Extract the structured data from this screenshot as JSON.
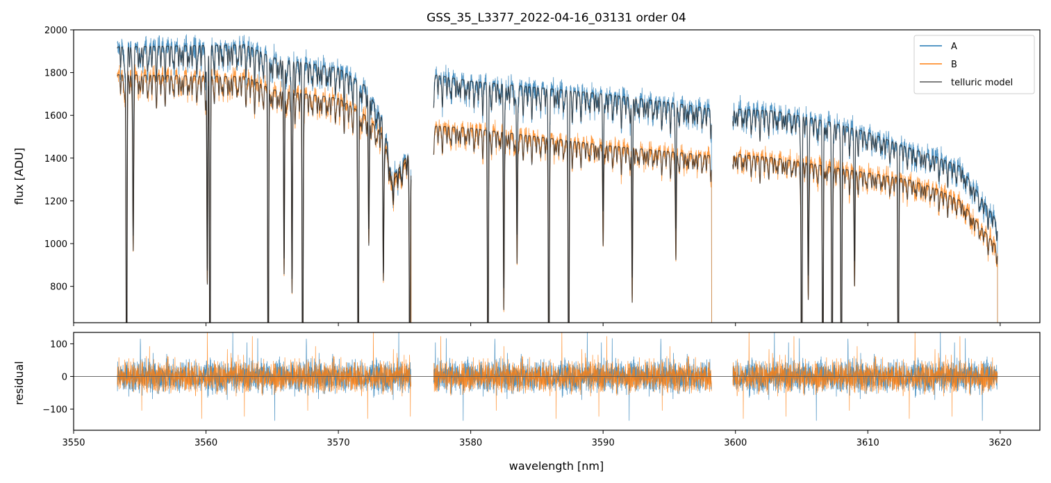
{
  "chart_data": [
    {
      "type": "line",
      "panel": "main",
      "title": "GSS_35_L3377_2022-04-16_03131  order 04",
      "xlabel": "",
      "ylabel": "flux [ADU]",
      "xlim": [
        3550,
        3623
      ],
      "ylim": [
        630,
        2000
      ],
      "xticks": [
        3550,
        3560,
        3570,
        3580,
        3590,
        3600,
        3610,
        3620
      ],
      "yticks": [
        800,
        1000,
        1200,
        1400,
        1600,
        1800,
        2000
      ],
      "ytick_labels": [
        "800",
        "1000",
        "1200",
        "1400",
        "1600",
        "1800",
        "2000"
      ],
      "legend_location": "top-right",
      "segments": [
        [
          3553.3,
          3575.5
        ],
        [
          3577.2,
          3598.2
        ],
        [
          3599.8,
          3619.8
        ]
      ],
      "absorption_lines": [
        {
          "x": 3554.0,
          "depth": 0.98
        },
        {
          "x": 3554.5,
          "depth": 0.45
        },
        {
          "x": 3560.1,
          "depth": 0.55
        },
        {
          "x": 3560.3,
          "depth": 0.95
        },
        {
          "x": 3564.7,
          "depth": 0.96
        },
        {
          "x": 3565.9,
          "depth": 0.5
        },
        {
          "x": 3566.5,
          "depth": 0.55
        },
        {
          "x": 3567.3,
          "depth": 0.97
        },
        {
          "x": 3571.5,
          "depth": 0.96
        },
        {
          "x": 3572.3,
          "depth": 0.35
        },
        {
          "x": 3573.4,
          "depth": 0.45
        },
        {
          "x": 3575.4,
          "depth": 0.96
        },
        {
          "x": 3581.3,
          "depth": 0.97
        },
        {
          "x": 3582.5,
          "depth": 0.55
        },
        {
          "x": 3583.5,
          "depth": 0.4
        },
        {
          "x": 3585.9,
          "depth": 0.97
        },
        {
          "x": 3587.4,
          "depth": 0.96
        },
        {
          "x": 3590.0,
          "depth": 0.3
        },
        {
          "x": 3592.2,
          "depth": 0.5
        },
        {
          "x": 3595.5,
          "depth": 0.35
        },
        {
          "x": 3605.0,
          "depth": 0.97
        },
        {
          "x": 3605.5,
          "depth": 0.45
        },
        {
          "x": 3606.6,
          "depth": 0.96
        },
        {
          "x": 3607.3,
          "depth": 0.96
        },
        {
          "x": 3608.0,
          "depth": 0.96
        },
        {
          "x": 3609.0,
          "depth": 0.4
        },
        {
          "x": 3612.3,
          "depth": 0.85
        }
      ],
      "series": [
        {
          "name": "A",
          "color": "#1f77b4",
          "continuum": [
            [
              3553.3,
              1920
            ],
            [
              3563,
              1930
            ],
            [
              3565,
              1870
            ],
            [
              3570,
              1820
            ],
            [
              3572,
              1740
            ],
            [
              3573.5,
              1560
            ],
            [
              3574,
              1300
            ],
            [
              3575.5,
              1440
            ],
            [
              3577.2,
              1790
            ],
            [
              3580,
              1760
            ],
            [
              3585,
              1730
            ],
            [
              3590,
              1700
            ],
            [
              3595,
              1660
            ],
            [
              3598.2,
              1630
            ],
            [
              3599.8,
              1630
            ],
            [
              3603,
              1620
            ],
            [
              3607,
              1570
            ],
            [
              3610,
              1520
            ],
            [
              3613,
              1450
            ],
            [
              3615,
              1410
            ],
            [
              3617,
              1360
            ],
            [
              3619.8,
              1100
            ]
          ]
        },
        {
          "name": "B",
          "color": "#ff7f0e",
          "continuum": [
            [
              3553.3,
              1790
            ],
            [
              3563,
              1780
            ],
            [
              3565,
              1720
            ],
            [
              3570,
              1680
            ],
            [
              3572,
              1600
            ],
            [
              3573.5,
              1500
            ],
            [
              3574,
              1280
            ],
            [
              3575.5,
              1420
            ],
            [
              3577.2,
              1550
            ],
            [
              3580,
              1540
            ],
            [
              3585,
              1500
            ],
            [
              3590,
              1460
            ],
            [
              3595,
              1430
            ],
            [
              3598.2,
              1410
            ],
            [
              3599.8,
              1420
            ],
            [
              3603,
              1400
            ],
            [
              3607,
              1360
            ],
            [
              3610,
              1330
            ],
            [
              3613,
              1300
            ],
            [
              3615,
              1260
            ],
            [
              3617,
              1200
            ],
            [
              3619.8,
              980
            ]
          ]
        },
        {
          "name": "telluric model",
          "color": "#555555"
        }
      ]
    },
    {
      "type": "line",
      "panel": "residual",
      "title": "",
      "xlabel": "wavelength [nm]",
      "ylabel": "residual",
      "xlim": [
        3550,
        3623
      ],
      "ylim": [
        -165,
        135
      ],
      "xticks": [
        3550,
        3560,
        3570,
        3580,
        3590,
        3600,
        3610,
        3620
      ],
      "xtick_labels": [
        "3550",
        "3560",
        "3570",
        "3580",
        "3590",
        "3600",
        "3610",
        "3620"
      ],
      "yticks": [
        -100,
        0,
        100
      ],
      "ytick_labels": [
        "−100",
        "0",
        "100"
      ],
      "reference_line": 0,
      "noise_amplitude": 60,
      "series": [
        {
          "name": "A",
          "color": "#1f77b4"
        },
        {
          "name": "B",
          "color": "#ff7f0e"
        }
      ]
    }
  ]
}
